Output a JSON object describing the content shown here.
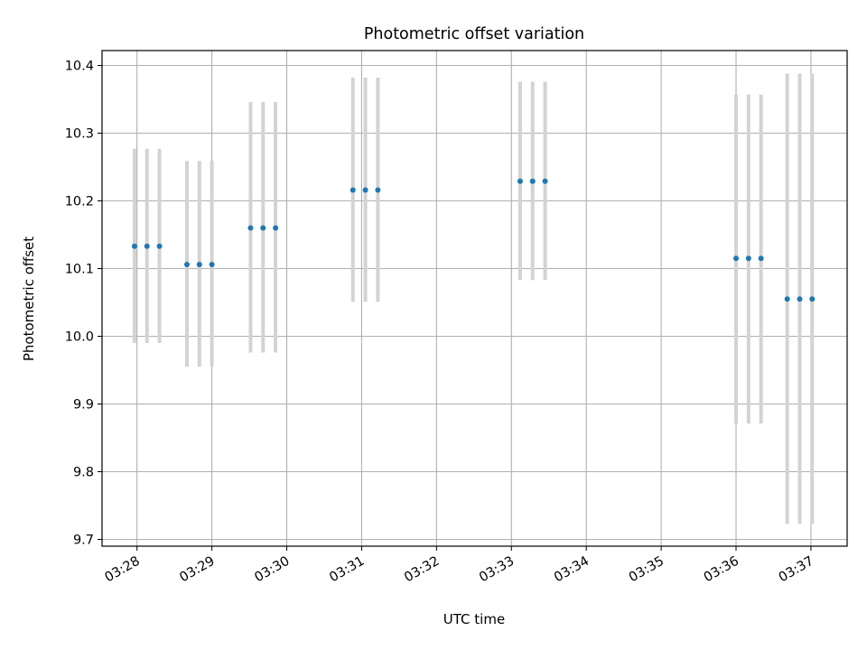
{
  "chart_data": {
    "type": "scatter",
    "title": "Photometric offset variation",
    "xlabel": "UTC time",
    "ylabel": "Photometric offset",
    "x_unit": "UTC time (HH:MM:SS)",
    "xlim": [
      "03:27:32",
      "03:37:29"
    ],
    "ylim": [
      9.69,
      10.422
    ],
    "xticks": [
      "03:28",
      "03:29",
      "03:30",
      "03:31",
      "03:32",
      "03:33",
      "03:34",
      "03:35",
      "03:36",
      "03:37"
    ],
    "yticks": [
      "9.7",
      "9.8",
      "9.9",
      "10.0",
      "10.1",
      "10.2",
      "10.3",
      "10.4"
    ],
    "grid": true,
    "legend": false,
    "colors": {
      "point": "#1f77b4",
      "errorbar": "#d3d3d3",
      "grid": "#b0b0b0"
    },
    "series": [
      {
        "points": [
          {
            "x": "03:27:58",
            "y": 10.133,
            "low": 9.99,
            "high": 10.277
          },
          {
            "x": "03:28:08",
            "y": 10.133,
            "low": 9.99,
            "high": 10.277
          },
          {
            "x": "03:28:18",
            "y": 10.133,
            "low": 9.99,
            "high": 10.277
          },
          {
            "x": "03:28:40",
            "y": 10.106,
            "low": 9.955,
            "high": 10.259
          },
          {
            "x": "03:28:50",
            "y": 10.106,
            "low": 9.955,
            "high": 10.259
          },
          {
            "x": "03:29:00",
            "y": 10.106,
            "low": 9.955,
            "high": 10.259
          },
          {
            "x": "03:29:31",
            "y": 10.16,
            "low": 9.976,
            "high": 10.346
          },
          {
            "x": "03:29:41",
            "y": 10.16,
            "low": 9.976,
            "high": 10.346
          },
          {
            "x": "03:29:51",
            "y": 10.16,
            "low": 9.976,
            "high": 10.346
          },
          {
            "x": "03:30:53",
            "y": 10.216,
            "low": 10.051,
            "high": 10.382
          },
          {
            "x": "03:31:03",
            "y": 10.216,
            "low": 10.051,
            "high": 10.382
          },
          {
            "x": "03:31:13",
            "y": 10.216,
            "low": 10.051,
            "high": 10.382
          },
          {
            "x": "03:33:07",
            "y": 10.229,
            "low": 10.083,
            "high": 10.376
          },
          {
            "x": "03:33:17",
            "y": 10.229,
            "low": 10.083,
            "high": 10.376
          },
          {
            "x": "03:33:27",
            "y": 10.229,
            "low": 10.083,
            "high": 10.376
          },
          {
            "x": "03:36:00",
            "y": 10.115,
            "low": 9.871,
            "high": 10.357
          },
          {
            "x": "03:36:10",
            "y": 10.115,
            "low": 9.871,
            "high": 10.357
          },
          {
            "x": "03:36:20",
            "y": 10.115,
            "low": 9.871,
            "high": 10.357
          },
          {
            "x": "03:36:41",
            "y": 10.055,
            "low": 9.723,
            "high": 10.388
          },
          {
            "x": "03:36:51",
            "y": 10.055,
            "low": 9.723,
            "high": 10.388
          },
          {
            "x": "03:37:01",
            "y": 10.055,
            "low": 9.723,
            "high": 10.388
          }
        ]
      }
    ]
  }
}
